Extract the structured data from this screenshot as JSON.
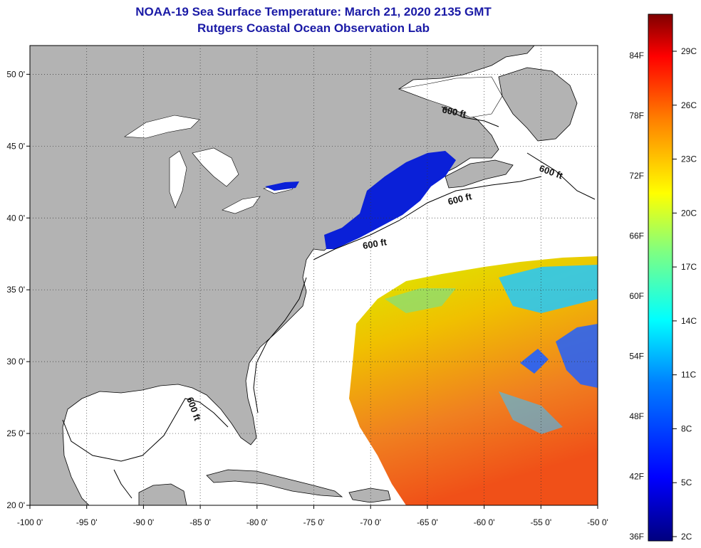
{
  "title": {
    "line1": "NOAA-19 Sea Surface Temperature:  March 21, 2020 2135 GMT",
    "line2": "Rutgers Coastal Ocean Observation Lab"
  },
  "map": {
    "lon_range": [
      -100,
      -50
    ],
    "lat_range": [
      20,
      52
    ],
    "lon_ticks": [
      "-100 0'",
      "-95 0'",
      "-90 0'",
      "-85 0'",
      "-80 0'",
      "-75 0'",
      "-70 0'",
      "-65 0'",
      "-60 0'",
      "-55 0'",
      "-50 0'"
    ],
    "lat_ticks": [
      "50 0'",
      "45 0'",
      "40 0'",
      "35 0'",
      "30 0'",
      "25 0'",
      "20 0'"
    ],
    "contour_labels": [
      "600 ft",
      "600 ft",
      "600 ft",
      "600 ft",
      "600 ft"
    ],
    "colors": {
      "land": "#b3b3b3",
      "ocean": "#ffffff",
      "grid": "#333333"
    }
  },
  "colorbar": {
    "fahrenheit_labels": [
      "84F",
      "78F",
      "72F",
      "66F",
      "60F",
      "54F",
      "48F",
      "42F",
      "36F"
    ],
    "celsius_labels": [
      "29C",
      "26C",
      "23C",
      "20C",
      "17C",
      "14C",
      "11C",
      "8C",
      "5C",
      "2C"
    ],
    "colors": [
      "#00007f",
      "#0000ff",
      "#0080ff",
      "#00ffff",
      "#80ff80",
      "#ffff00",
      "#ff8000",
      "#ff0000",
      "#7f0000"
    ]
  }
}
